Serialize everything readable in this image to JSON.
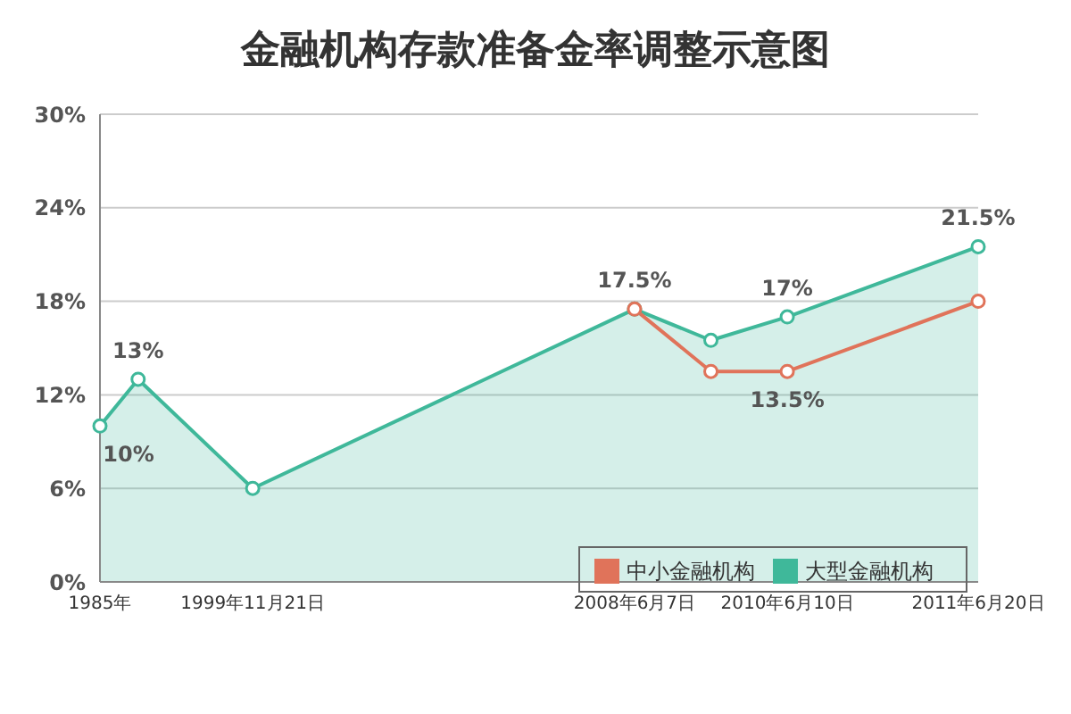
{
  "chart_data": {
    "type": "line",
    "title": "金融机构存款准备金率调整示意图",
    "categories": [
      "1985年",
      null,
      null,
      null,
      "1999年11月21日",
      null,
      null,
      null,
      null,
      null,
      null,
      null,
      null,
      null,
      "2008年6月7日",
      null,
      null,
      null,
      "2010年6月10日",
      null,
      null,
      null,
      null,
      "2011年6月20日"
    ],
    "series": [
      {
        "name": "大型金融机构",
        "type": "area",
        "color": "#3fb89a",
        "values": [
          10,
          13,
          null,
          null,
          6,
          null,
          null,
          null,
          null,
          null,
          null,
          null,
          null,
          null,
          17.5,
          null,
          15.5,
          null,
          17,
          null,
          null,
          null,
          null,
          21.5
        ],
        "value_labels": [
          "10%",
          "13%",
          null,
          null,
          null,
          null,
          null,
          null,
          null,
          null,
          null,
          null,
          null,
          null,
          "17.5%",
          null,
          null,
          null,
          "17%",
          null,
          null,
          null,
          null,
          "21.5%"
        ]
      },
      {
        "name": "中小金融机构",
        "color": "#e0735a",
        "values": [
          null,
          null,
          null,
          null,
          null,
          null,
          null,
          null,
          null,
          null,
          null,
          null,
          null,
          null,
          17.5,
          null,
          13.5,
          null,
          13.5,
          null,
          null,
          null,
          null,
          18
        ],
        "value_labels": [
          null,
          null,
          null,
          null,
          null,
          null,
          null,
          null,
          null,
          null,
          null,
          null,
          null,
          null,
          null,
          null,
          null,
          null,
          "13.5%",
          null,
          null,
          null,
          null,
          null
        ]
      }
    ],
    "ylim": [
      0,
      30
    ],
    "yticks": [
      {
        "value": 0,
        "label": "0%"
      },
      {
        "value": 6,
        "label": "6%"
      },
      {
        "value": 12,
        "label": "12%"
      },
      {
        "value": 18,
        "label": "18%"
      },
      {
        "value": 24,
        "label": "24%"
      },
      {
        "value": 30,
        "label": "30%"
      }
    ],
    "grid": "y",
    "legend": "bottom right",
    "marker": "circle"
  }
}
